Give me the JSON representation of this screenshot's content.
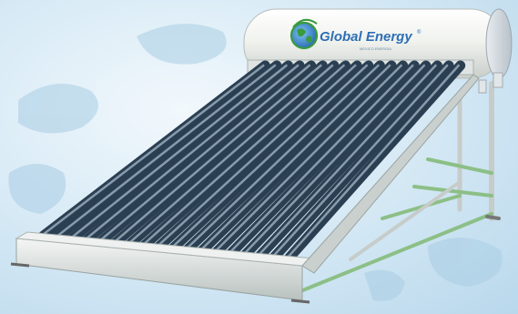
{
  "logo": {
    "name": "Global Energy",
    "mark": "®",
    "tagline": "MEXICO ENERGIA"
  },
  "product": {
    "tube_count": 18
  },
  "colors": {
    "background": "#c9e1f1",
    "tank": "#f7f8f6",
    "tube_dark": "#2b3f52",
    "tube_glass": "#9fb3c2",
    "frame": "#cfd6d4",
    "frame_green": "#7fb27a",
    "brand_blue": "#2e6fb6",
    "brand_green": "#3a9a3e"
  }
}
